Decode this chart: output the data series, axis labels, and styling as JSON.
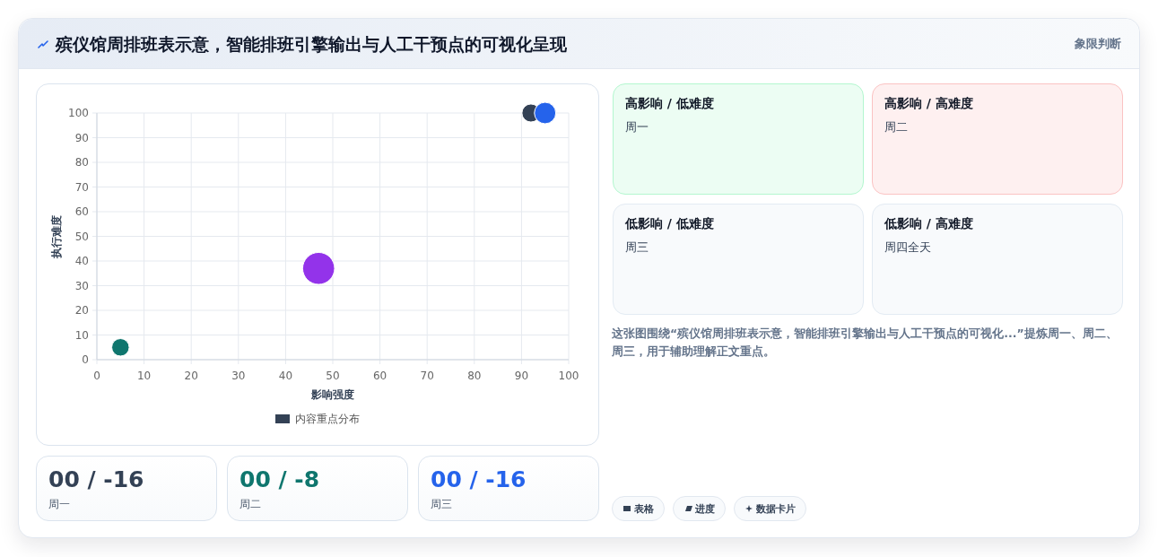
{
  "chart_data": [
    {
      "type": "other",
      "title": "殡仪馆周排班表示意，智能排班引擎输出与人工干预点的可视化呈现",
      "subtitle": "象限判断"
    },
    {
      "type": "bubble",
      "xlabel": "影响强度",
      "ylabel": "执行难度",
      "xlim": [
        0,
        100
      ],
      "ylim": [
        0,
        100
      ],
      "xticks": [
        0,
        10,
        20,
        30,
        40,
        50,
        60,
        70,
        80,
        90,
        100
      ],
      "yticks": [
        0,
        10,
        20,
        30,
        40,
        50,
        60,
        70,
        80,
        90,
        100
      ],
      "grid": true,
      "legend": "bottom",
      "series": [
        {
          "name": "内容重点分布",
          "color": "#334155",
          "x": [
            92,
            95,
            47,
            5
          ],
          "values": [
            100,
            100,
            37,
            5
          ],
          "sizes": [
            0.32,
            0.45,
            1,
            0.3
          ],
          "colors": [
            "#334155",
            "#2563eb",
            "#9333ea",
            "#0f766e"
          ]
        }
      ]
    },
    {
      "type": "other",
      "annotations": [
        "高影响 / 低难度",
        "周一",
        "高影响 / 高难度",
        "周二",
        "低影响 / 低难度",
        "周三",
        "低影响 / 高难度",
        "周四全天",
        "这张图围绕“殡仪馆周排班表示意，智能排班引擎输出与人工干预点的可视化...”提炼周一、周二、周三，用于辅助理解正文重点。"
      ],
      "colors": [
        "#ecfdf3",
        "#fef0f0",
        "#f8fafc",
        "#f8fafc"
      ]
    },
    {
      "type": "other",
      "annotations": [
        "00 / -16",
        "周一",
        "00 / -8",
        "周二",
        "00 / -16",
        "周三"
      ],
      "colors": [
        "#334155",
        "#0f766e",
        "#2563eb"
      ]
    },
    {
      "type": "other",
      "annotations": [
        "表格",
        "进度",
        "数据卡片"
      ]
    }
  ]
}
